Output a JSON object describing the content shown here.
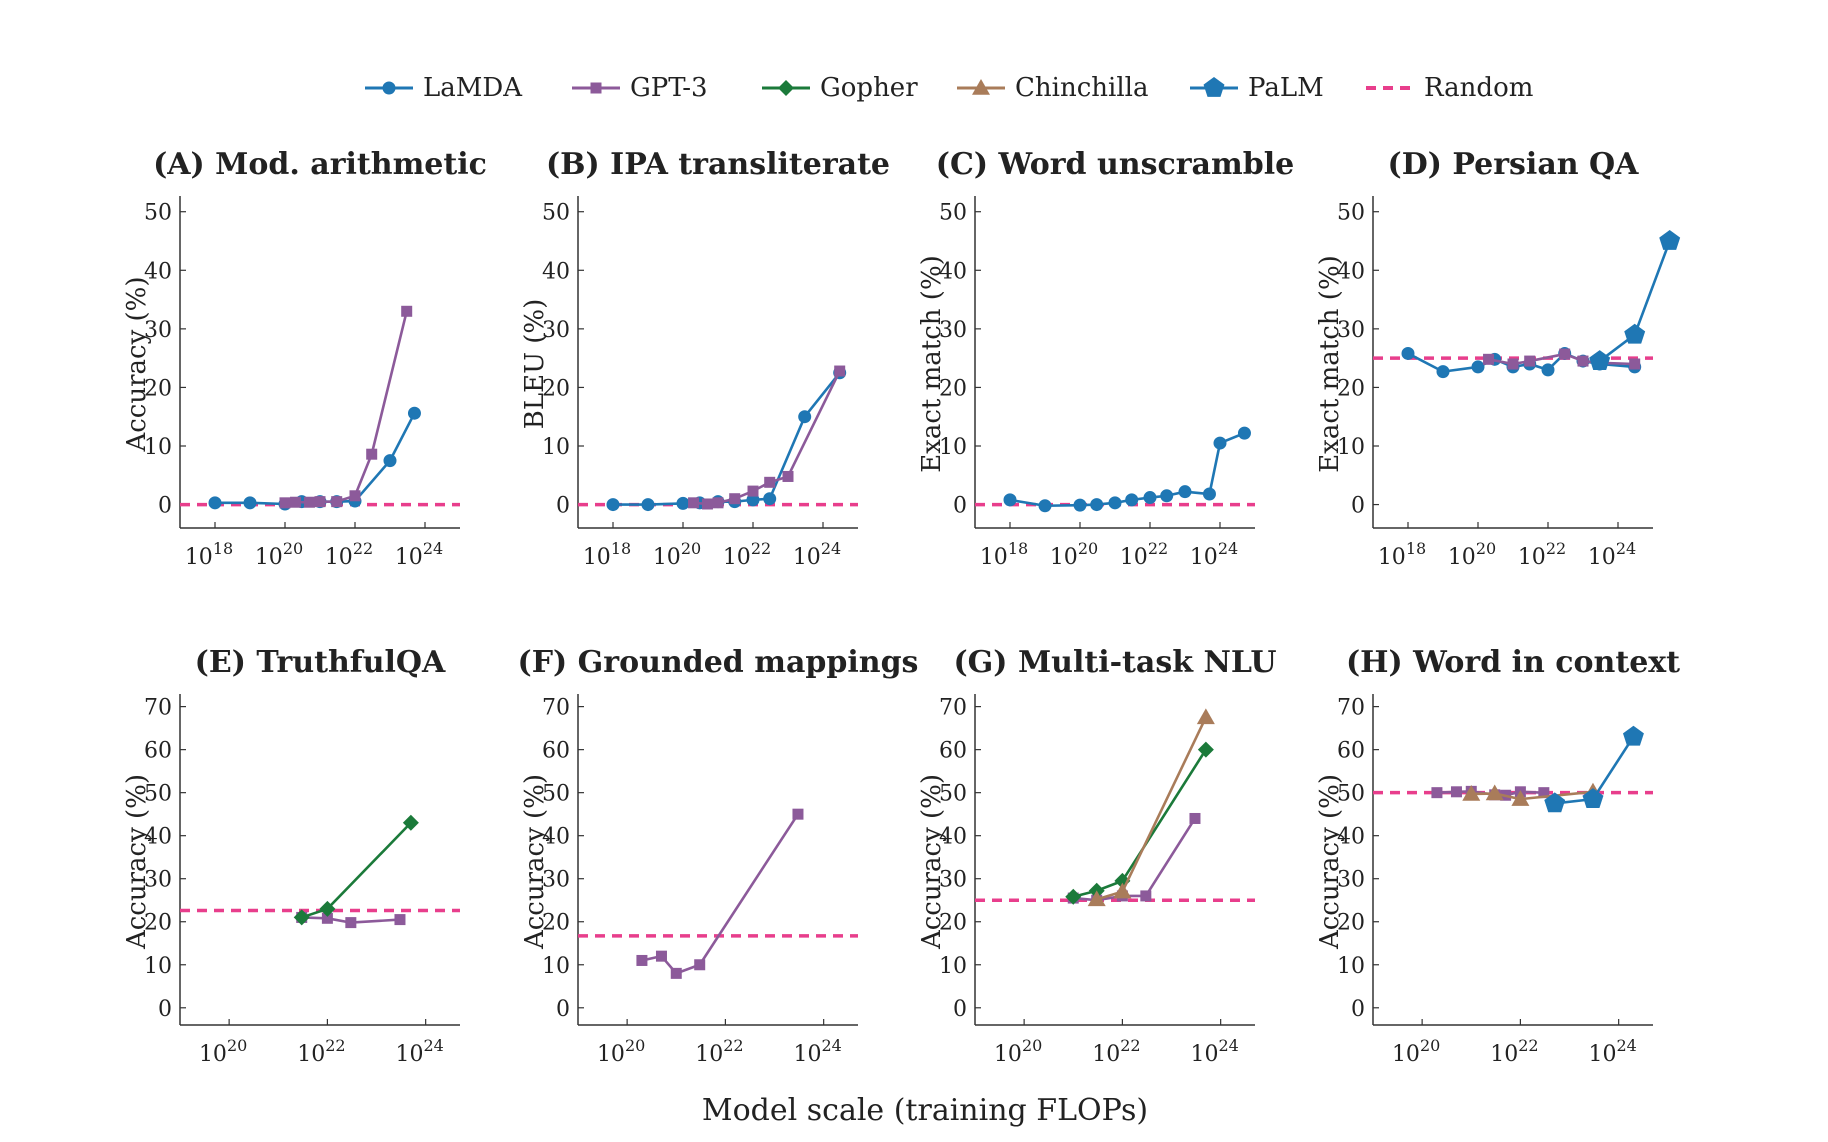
{
  "figure": {
    "xlabel": "Model scale (training FLOPs)",
    "legend": [
      {
        "name": "LaMDA",
        "color": "#1f77b4",
        "marker": "circle",
        "dash": false
      },
      {
        "name": "GPT-3",
        "color": "#8c5a9a",
        "marker": "square",
        "dash": false
      },
      {
        "name": "Gopher",
        "color": "#1b7a3a",
        "marker": "diamond",
        "dash": false
      },
      {
        "name": "Chinchilla",
        "color": "#a97c5a",
        "marker": "triangle",
        "dash": false
      },
      {
        "name": "PaLM",
        "color": "#1f77b4",
        "marker": "pentagon",
        "dash": false
      },
      {
        "name": "Random",
        "color": "#e83e8c",
        "marker": "none",
        "dash": true
      }
    ]
  },
  "chart_data": [
    {
      "type": "line",
      "title": "(A) Mod. arithmetic",
      "ylabel": "Accuracy (%)",
      "xlabel": "",
      "x_scale": "log",
      "xlim": [
        1e+17,
        1e+25
      ],
      "ylim": [
        -4,
        52
      ],
      "xticks": [
        18,
        20,
        22,
        24
      ],
      "yticks": [
        0,
        10,
        20,
        30,
        40,
        50
      ],
      "random": 0,
      "series": [
        {
          "name": "LaMDA",
          "points": [
            [
              1e+18,
              0.3
            ],
            [
              1e+19,
              0.3
            ],
            [
              1e+20,
              0.1
            ],
            [
              3e+20,
              0.5
            ],
            [
              1e+21,
              0.5
            ],
            [
              3e+21,
              0.5
            ],
            [
              1e+22,
              0.6
            ],
            [
              1e+23,
              7.5
            ],
            [
              5e+23,
              15.6
            ]
          ]
        },
        {
          "name": "GPT-3",
          "points": [
            [
              1e+20,
              0.3
            ],
            [
              2e+20,
              0.4
            ],
            [
              5e+20,
              0.4
            ],
            [
              1e+21,
              0.5
            ],
            [
              3e+21,
              0.5
            ],
            [
              1e+22,
              1.5
            ],
            [
              3e+22,
              8.6
            ],
            [
              3e+23,
              33.0
            ]
          ]
        }
      ]
    },
    {
      "type": "line",
      "title": "(B) IPA transliterate",
      "ylabel": "BLEU (%)",
      "xlabel": "",
      "x_scale": "log",
      "xlim": [
        1e+17,
        1e+25
      ],
      "ylim": [
        -4,
        52
      ],
      "xticks": [
        18,
        20,
        22,
        24
      ],
      "yticks": [
        0,
        10,
        20,
        30,
        40,
        50
      ],
      "random": 0,
      "series": [
        {
          "name": "LaMDA",
          "points": [
            [
              1e+18,
              0.0
            ],
            [
              1e+19,
              0.0
            ],
            [
              1e+20,
              0.2
            ],
            [
              3e+20,
              0.3
            ],
            [
              1e+21,
              0.5
            ],
            [
              3e+21,
              0.5
            ],
            [
              1e+22,
              0.8
            ],
            [
              3e+22,
              1.0
            ],
            [
              3e+23,
              15.0
            ],
            [
              3e+24,
              22.5
            ]
          ]
        },
        {
          "name": "GPT-3",
          "points": [
            [
              2e+20,
              0.3
            ],
            [
              5e+20,
              0.1
            ],
            [
              1e+21,
              0.3
            ],
            [
              3e+21,
              1.0
            ],
            [
              1e+22,
              2.3
            ],
            [
              3e+22,
              3.8
            ],
            [
              1e+23,
              4.8
            ],
            [
              3e+24,
              22.8
            ]
          ]
        }
      ]
    },
    {
      "type": "line",
      "title": "(C) Word unscramble",
      "ylabel": "Exact match (%)",
      "xlabel": "",
      "x_scale": "log",
      "xlim": [
        1e+17,
        1e+25
      ],
      "ylim": [
        -4,
        52
      ],
      "xticks": [
        18,
        20,
        22,
        24
      ],
      "yticks": [
        0,
        10,
        20,
        30,
        40,
        50
      ],
      "random": 0,
      "series": [
        {
          "name": "LaMDA",
          "points": [
            [
              1e+18,
              0.8
            ],
            [
              1e+19,
              -0.2
            ],
            [
              1e+20,
              -0.1
            ],
            [
              3e+20,
              0.0
            ],
            [
              1e+21,
              0.3
            ],
            [
              3e+21,
              0.8
            ],
            [
              1e+22,
              1.2
            ],
            [
              3e+22,
              1.5
            ],
            [
              1e+23,
              2.2
            ],
            [
              5e+23,
              1.8
            ],
            [
              1e+24,
              10.5
            ],
            [
              5e+24,
              12.2
            ]
          ]
        }
      ]
    },
    {
      "type": "line",
      "title": "(D) Persian QA",
      "ylabel": "Exact match (%)",
      "xlabel": "",
      "x_scale": "log",
      "xlim": [
        1e+17,
        1e+25
      ],
      "ylim": [
        -4,
        52
      ],
      "xticks": [
        18,
        20,
        22,
        24
      ],
      "yticks": [
        0,
        10,
        20,
        30,
        40,
        50
      ],
      "random": 25,
      "series": [
        {
          "name": "LaMDA",
          "points": [
            [
              1e+18,
              25.8
            ],
            [
              1e+19,
              22.7
            ],
            [
              1e+20,
              23.5
            ],
            [
              3e+20,
              24.8
            ],
            [
              1e+21,
              23.5
            ],
            [
              3e+21,
              24.0
            ],
            [
              1e+22,
              23.0
            ],
            [
              3e+22,
              25.8
            ],
            [
              1e+23,
              24.5
            ],
            [
              3e+23,
              24.0
            ],
            [
              3e+24,
              23.5
            ]
          ]
        },
        {
          "name": "GPT-3",
          "points": [
            [
              2e+20,
              24.8
            ],
            [
              1e+21,
              24.0
            ],
            [
              3e+21,
              24.5
            ],
            [
              3e+22,
              25.7
            ],
            [
              1e+23,
              24.5
            ],
            [
              3e+23,
              24.2
            ],
            [
              3e+24,
              24.0
            ]
          ]
        },
        {
          "name": "PaLM",
          "points": [
            [
              3e+23,
              24.5
            ],
            [
              3e+24,
              29.0
            ],
            [
              3e+25,
              45.0
            ]
          ]
        }
      ]
    },
    {
      "type": "line",
      "title": "(E) TruthfulQA",
      "ylabel": "Accuracy (%)",
      "xlabel": "",
      "x_scale": "log",
      "xlim": [
        1e+19,
        5e+24
      ],
      "ylim": [
        -4,
        72
      ],
      "xticks": [
        20,
        22,
        24
      ],
      "yticks": [
        0,
        10,
        20,
        30,
        40,
        50,
        60,
        70
      ],
      "random": 22.6,
      "series": [
        {
          "name": "GPT-3",
          "points": [
            [
              3e+21,
              21.0
            ],
            [
              1e+22,
              20.8
            ],
            [
              3e+22,
              19.8
            ],
            [
              3e+23,
              20.5
            ]
          ]
        },
        {
          "name": "Gopher",
          "points": [
            [
              3e+21,
              21.0
            ],
            [
              1e+22,
              23.0
            ],
            [
              5e+23,
              43.0
            ]
          ]
        }
      ]
    },
    {
      "type": "line",
      "title": "(F) Grounded mappings",
      "ylabel": "Accuracy (%)",
      "xlabel": "",
      "x_scale": "log",
      "xlim": [
        1e+19,
        5e+24
      ],
      "ylim": [
        -4,
        72
      ],
      "xticks": [
        20,
        22,
        24
      ],
      "yticks": [
        0,
        10,
        20,
        30,
        40,
        50,
        60,
        70
      ],
      "random": 16.7,
      "series": [
        {
          "name": "GPT-3",
          "points": [
            [
              2e+20,
              11.0
            ],
            [
              5e+20,
              12.0
            ],
            [
              1e+21,
              8.0
            ],
            [
              3e+21,
              10.0
            ],
            [
              3e+23,
              45.0
            ]
          ]
        }
      ]
    },
    {
      "type": "line",
      "title": "(G) Multi-task NLU",
      "ylabel": "Accuracy (%)",
      "xlabel": "",
      "x_scale": "log",
      "xlim": [
        1e+19,
        5e+24
      ],
      "ylim": [
        -4,
        72
      ],
      "xticks": [
        20,
        22,
        24
      ],
      "yticks": [
        0,
        10,
        20,
        30,
        40,
        50,
        60,
        70
      ],
      "random": 25,
      "series": [
        {
          "name": "GPT-3",
          "points": [
            [
              1e+21,
              25.5
            ],
            [
              3e+21,
              25.0
            ],
            [
              1e+22,
              26.0
            ],
            [
              3e+22,
              26.0
            ],
            [
              3e+23,
              44.0
            ]
          ]
        },
        {
          "name": "Gopher",
          "points": [
            [
              1e+21,
              25.8
            ],
            [
              3e+21,
              27.2
            ],
            [
              1e+22,
              29.5
            ],
            [
              5e+23,
              60.0
            ]
          ]
        },
        {
          "name": "Chinchilla",
          "points": [
            [
              3e+21,
              25.2
            ],
            [
              1e+22,
              27.0
            ],
            [
              5e+23,
              67.5
            ]
          ]
        }
      ]
    },
    {
      "type": "line",
      "title": "(H) Word in context",
      "ylabel": "Accuracy (%)",
      "xlabel": "",
      "x_scale": "log",
      "xlim": [
        1e+19,
        5e+24
      ],
      "ylim": [
        -4,
        72
      ],
      "xticks": [
        20,
        22,
        24
      ],
      "yticks": [
        0,
        10,
        20,
        30,
        40,
        50,
        60,
        70
      ],
      "random": 50,
      "series": [
        {
          "name": "GPT-3",
          "points": [
            [
              2e+20,
              50.0
            ],
            [
              5e+20,
              50.2
            ],
            [
              1e+21,
              50.3
            ],
            [
              3e+21,
              49.5
            ],
            [
              5e+21,
              49.4
            ],
            [
              1e+22,
              50.2
            ],
            [
              3e+22,
              50.0
            ]
          ]
        },
        {
          "name": "Chinchilla",
          "points": [
            [
              1e+21,
              49.7
            ],
            [
              3e+21,
              49.8
            ],
            [
              1e+22,
              48.5
            ],
            [
              3e+23,
              50.2
            ]
          ]
        },
        {
          "name": "PaLM",
          "points": [
            [
              5e+22,
              47.5
            ],
            [
              3e+23,
              48.5
            ],
            [
              2e+24,
              63.0
            ]
          ]
        }
      ]
    }
  ]
}
